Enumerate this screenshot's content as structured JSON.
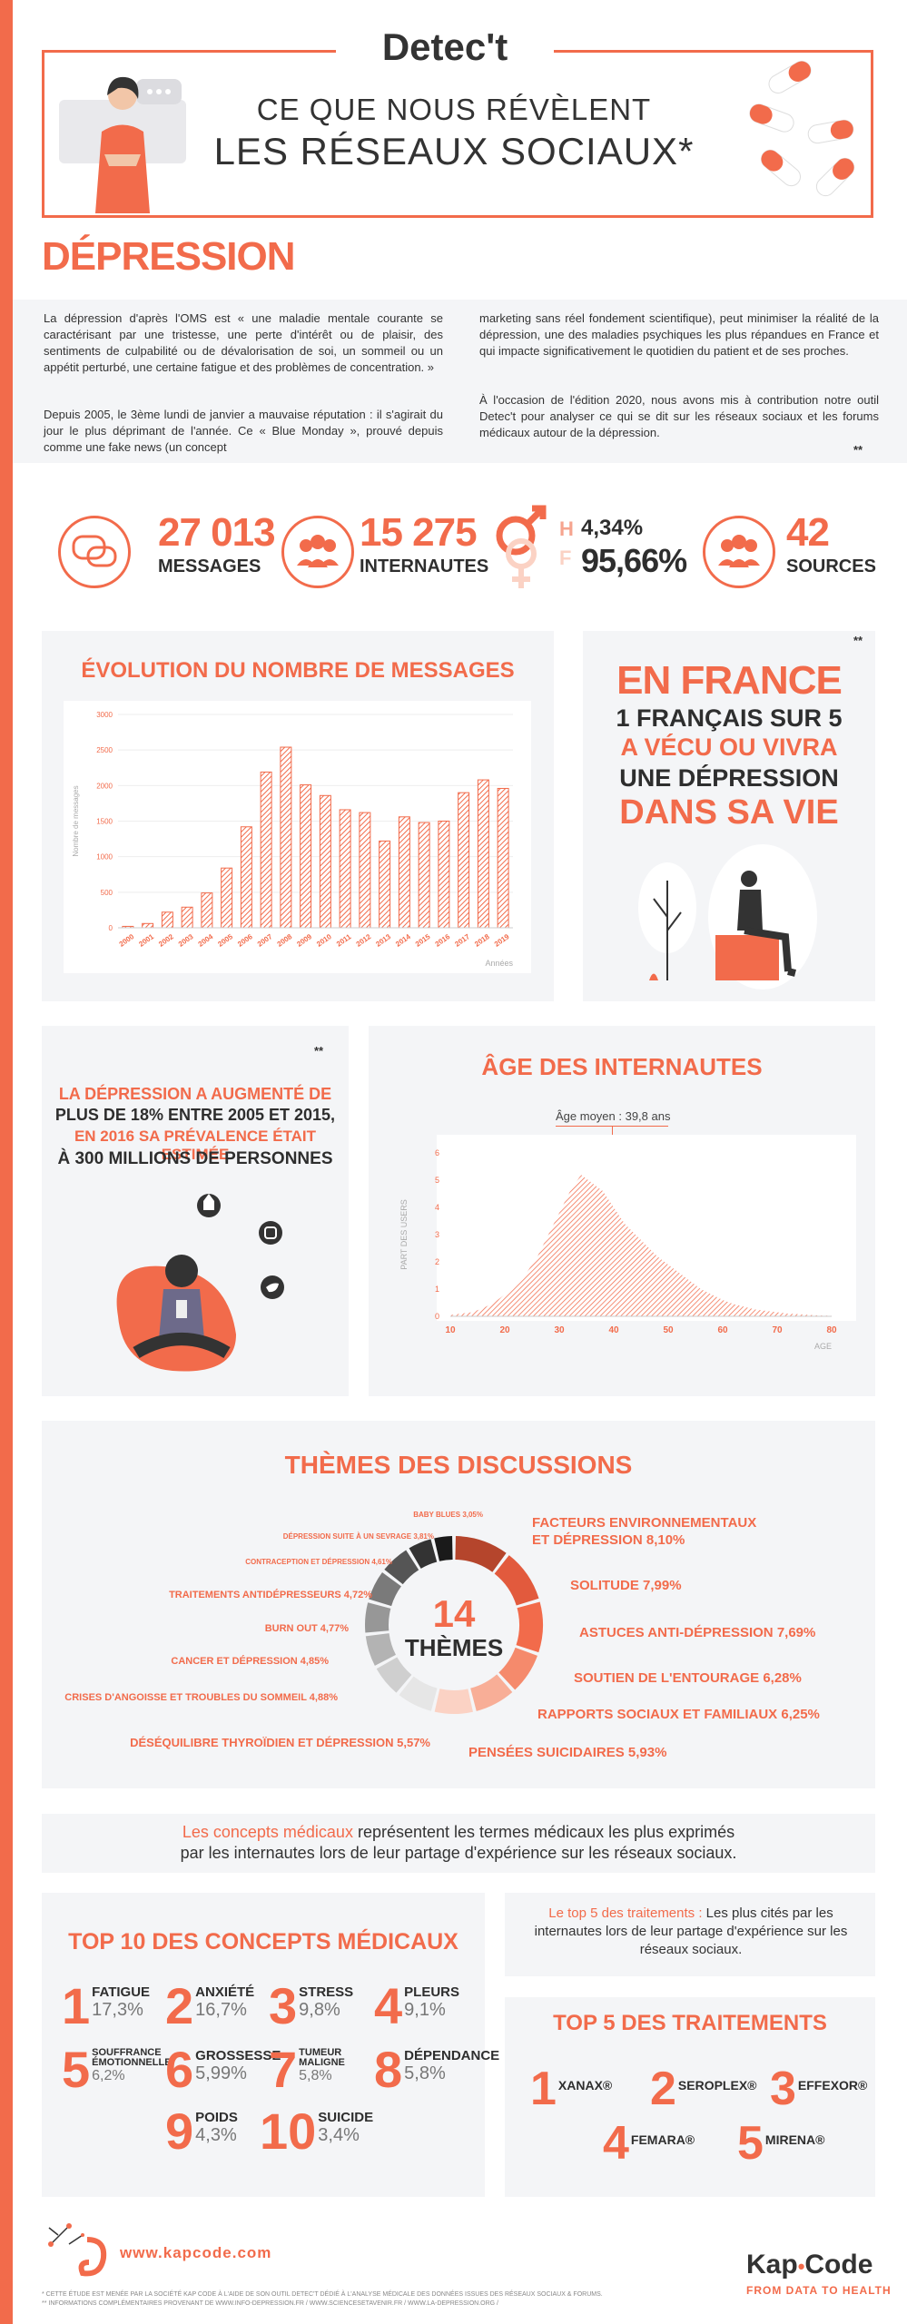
{
  "header": {
    "brand": "Detec't",
    "title_line1": "CE QUE NOUS RÉVÈLENT",
    "title_line2": "LES RÉSEAUX SOCIAUX*"
  },
  "intro": {
    "heading": "DÉPRESSION",
    "col1_p1": "La dépression d'après l'OMS est « une maladie mentale courante se caractérisant par une tristesse, une perte d'intérêt ou de plaisir, des sentiments de culpabilité ou de dévalorisation de soi, un sommeil ou un appétit perturbé, une certaine fatigue et des problèmes de concentration. »",
    "col1_p2": "Depuis 2005, le 3ème lundi de janvier a mauvaise réputation : il s'agirait du jour le plus déprimant de l'année. Ce « Blue Monday », prouvé depuis comme une fake news (un concept",
    "col2_p1": "marketing sans réel fondement scientifique), peut minimiser la réalité de la dépression, une des maladies psychiques les plus répandues en France et qui impacte significativement le quotidien du patient et de ses proches.",
    "col2_p2": "À l'occasion de l'édition 2020, nous avons mis à contribution notre outil Detec't pour analyser ce qui se dit sur les réseaux sociaux et les forums médicaux autour de la dépression.",
    "footnote_mark": "**"
  },
  "stats": {
    "messages_value": "27 013",
    "messages_label": "MESSAGES",
    "users_value": "15 275",
    "users_label": "INTERNAUTES",
    "male_letter": "H",
    "male_pct": "4,34%",
    "female_letter": "F",
    "female_pct": "95,66%",
    "sources_value": "42",
    "sources_label": "SOURCES"
  },
  "evolution": {
    "title": "ÉVOLUTION DU NOMBRE DE MESSAGES"
  },
  "france": {
    "mark": "**",
    "line1": "EN FRANCE",
    "line2": "1 FRANÇAIS SUR 5",
    "line3": "A VÉCU OU VIVRA",
    "line4": "UNE DÉPRESSION",
    "line5": "DANS SA VIE"
  },
  "growth": {
    "mark": "**",
    "line1": "LA DÉPRESSION A AUGMENTÉ DE",
    "line2": "PLUS DE 18% ENTRE 2005 ET 2015,",
    "line3": "EN 2016 SA PRÉVALENCE ÉTAIT ESTIMÉE",
    "line4": "À 300 MILLIONS DE PERSONNES"
  },
  "age": {
    "title": "ÂGE DES INTERNAUTES",
    "mean_label": "Âge moyen : 39,8 ans"
  },
  "chart_data": [
    {
      "type": "bar",
      "title": "ÉVOLUTION DU NOMBRE DE MESSAGES",
      "ylabel": "Nombre de messages",
      "xlabel": "Années",
      "ylim": [
        0,
        3000
      ],
      "yticks": [
        0,
        500,
        1000,
        1500,
        2000,
        2500,
        3000
      ],
      "categories": [
        "2000",
        "2001",
        "2002",
        "2003",
        "2004",
        "2005",
        "2006",
        "2007",
        "2008",
        "2009",
        "2010",
        "2011",
        "2012",
        "2013",
        "2014",
        "2015",
        "2016",
        "2017",
        "2018",
        "2019"
      ],
      "values": [
        20,
        60,
        220,
        290,
        490,
        840,
        1420,
        2190,
        2540,
        2010,
        1860,
        1660,
        1620,
        1220,
        1560,
        1480,
        1500,
        1900,
        2080,
        1960
      ]
    },
    {
      "type": "area",
      "title": "ÂGE DES INTERNAUTES",
      "ylabel": "PART DES USERS",
      "xlabel": "AGE",
      "xlim": [
        10,
        80
      ],
      "ylim": [
        0,
        6
      ],
      "xticks": [
        10,
        20,
        30,
        40,
        50,
        60,
        70,
        80
      ],
      "yticks": [
        0,
        1,
        2,
        3,
        4,
        5,
        6
      ],
      "x": [
        10,
        12,
        14,
        16,
        18,
        20,
        22,
        24,
        26,
        28,
        30,
        32,
        34,
        36,
        38,
        40,
        42,
        44,
        46,
        48,
        50,
        52,
        54,
        56,
        58,
        60,
        62,
        64,
        66,
        68,
        70,
        72,
        74,
        76,
        78,
        80
      ],
      "y": [
        0.05,
        0.1,
        0.15,
        0.3,
        0.5,
        0.8,
        1.1,
        1.6,
        2.2,
        3.0,
        3.8,
        4.6,
        5.2,
        4.9,
        4.6,
        4.0,
        3.4,
        3.0,
        2.6,
        2.2,
        1.9,
        1.6,
        1.3,
        1.0,
        0.8,
        0.6,
        0.45,
        0.35,
        0.25,
        0.2,
        0.15,
        0.1,
        0.08,
        0.05,
        0.03,
        0.02
      ]
    },
    {
      "type": "pie",
      "title": "THÈMES DES DISCUSSIONS",
      "center_value": "14",
      "center_label": "THÈMES",
      "slices": [
        {
          "label": "FACTEURS ENVIRONNEMENTAUX ET DÉPRESSION",
          "value": 8.1,
          "text": "8,10%",
          "color": "#b5452c"
        },
        {
          "label": "SOLITUDE",
          "value": 7.99,
          "text": "7,99%",
          "color": "#e25a3d"
        },
        {
          "label": "ASTUCES ANTI-DÉPRESSION",
          "value": 7.69,
          "text": "7,69%",
          "color": "#f26b4b"
        },
        {
          "label": "SOUTIEN DE L'ENTOURAGE",
          "value": 6.28,
          "text": "6,28%",
          "color": "#f58a6c"
        },
        {
          "label": "RAPPORTS SOCIAUX ET FAMILIAUX",
          "value": 6.25,
          "text": "6,25%",
          "color": "#f8ae97"
        },
        {
          "label": "PENSÉES SUICIDAIRES",
          "value": 5.93,
          "text": "5,93%",
          "color": "#fbd2c4"
        },
        {
          "label": "DÉSÉQUILIBRE THYROÏDIEN ET DÉPRESSION",
          "value": 5.57,
          "text": "5,57%",
          "color": "#e6e6e6"
        },
        {
          "label": "CRISES D'ANGOISSE ET TROUBLES DU SOMMEIL",
          "value": 4.88,
          "text": "4,88%",
          "color": "#cfcfcf"
        },
        {
          "label": "CANCER ET DÉPRESSION",
          "value": 4.85,
          "text": "4,85%",
          "color": "#b3b3b3"
        },
        {
          "label": "BURN OUT",
          "value": 4.77,
          "text": "4,77%",
          "color": "#979797"
        },
        {
          "label": "TRAITEMENTS ANTIDÉPRESSEURS",
          "value": 4.72,
          "text": "4,72%",
          "color": "#7a7a7a"
        },
        {
          "label": "CONTRACEPTION ET DÉPRESSION",
          "value": 4.61,
          "text": "4,61%",
          "color": "#555555"
        },
        {
          "label": "DÉPRESSION SUITE À UN SEVRAGE",
          "value": 3.81,
          "text": "3,81%",
          "color": "#333333"
        },
        {
          "label": "BABY BLUES",
          "value": 3.05,
          "text": "3,05%",
          "color": "#1a1a1a"
        }
      ]
    }
  ],
  "concepts_note": {
    "line1_orange": "Les concepts médicaux",
    "line1_rest": " représentent les termes médicaux les plus exprimés",
    "line2": "par les internautes lors de leur partage d'expérience sur les réseaux sociaux."
  },
  "top10": {
    "title": "TOP 10 DES CONCEPTS MÉDICAUX",
    "items": [
      {
        "rank": "1",
        "label": "FATIGUE",
        "pct": "17,3%"
      },
      {
        "rank": "2",
        "label": "ANXIÉTÉ",
        "pct": "16,7%"
      },
      {
        "rank": "3",
        "label": "STRESS",
        "pct": "9,8%"
      },
      {
        "rank": "4",
        "label": "PLEURS",
        "pct": "9,1%"
      },
      {
        "rank": "5",
        "label": "SOUFFRANCE ÉMOTIONNELLE",
        "pct": "6,2%"
      },
      {
        "rank": "6",
        "label": "GROSSESSE",
        "pct": "5,99%"
      },
      {
        "rank": "7",
        "label": "TUMEUR MALIGNE",
        "pct": "5,8%"
      },
      {
        "rank": "8",
        "label": "DÉPENDANCE",
        "pct": "5,8%"
      },
      {
        "rank": "9",
        "label": "POIDS",
        "pct": "4,3%"
      },
      {
        "rank": "10",
        "label": "SUICIDE",
        "pct": "3,4%"
      }
    ]
  },
  "top5_note": {
    "orange": "Le top 5 des traitements :",
    "rest": " Les plus cités par les internautes lors de leur partage d'expérience sur les réseaux sociaux."
  },
  "top5": {
    "title": "TOP 5 DES TRAITEMENTS",
    "items": [
      {
        "rank": "1",
        "label": "XANAX®"
      },
      {
        "rank": "2",
        "label": "SEROPLEX®"
      },
      {
        "rank": "3",
        "label": "EFFEXOR®"
      },
      {
        "rank": "4",
        "label": "FEMARA®"
      },
      {
        "rank": "5",
        "label": "MIRENA®"
      }
    ]
  },
  "footer": {
    "url": "www.kapcode.com",
    "brand_left": "Kap",
    "brand_right": "Code",
    "tagline": "FROM DATA TO HEALTH",
    "note1": "* CETTE ÉTUDE EST MENÉE PAR LA SOCIÉTÉ KAP CODE À L'AIDE DE SON OUTIL DETEC'T DÉDIÉ À L'ANALYSE MÉDICALE DES DONNÉES ISSUES DES RÉSEAUX SOCIAUX & FORUMS.",
    "note2": "** INFORMATIONS COMPLÉMENTAIRES PROVENANT DE WWW.INFO-DEPRESSION.FR / WWW.SCIENCESETAVENIR.FR / WWW.LA-DEPRESSION.ORG /"
  },
  "colors": {
    "accent": "#f26b4b",
    "panel": "#f4f5f7",
    "dark": "#2e2e2e"
  }
}
